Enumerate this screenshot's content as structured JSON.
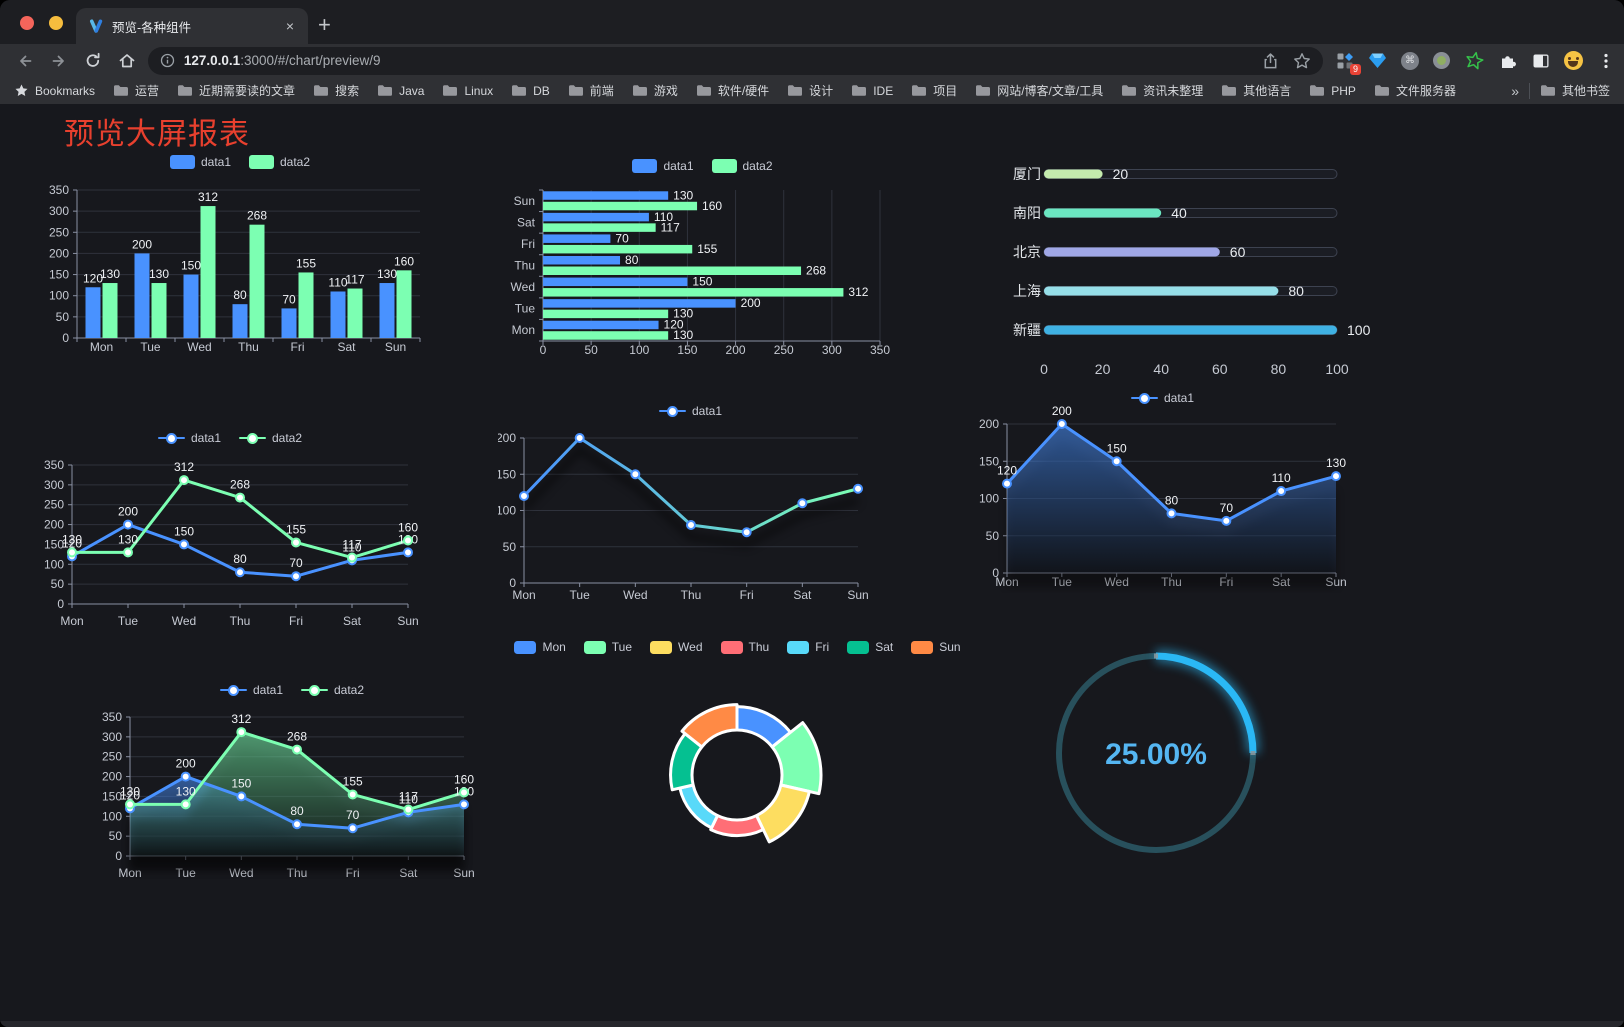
{
  "browser": {
    "tab_title": "预览-各种组件",
    "url_host": "127.0.0.1",
    "url_rest": ":3000/#/chart/preview/9",
    "new_tab_label": "+",
    "close_tab_label": "×",
    "extension_badge": "9",
    "bookmarks_label": "Bookmarks",
    "bookmarks": [
      "运营",
      "近期需要读的文章",
      "搜索",
      "Java",
      "Linux",
      "DB",
      "前端",
      "游戏",
      "软件/硬件",
      "设计",
      "IDE",
      "项目",
      "网站/博客/文章/工具",
      "资讯未整理",
      "其他语言",
      "PHP",
      "文件服务器"
    ],
    "bookmarks_overflow": "»",
    "other_bookmarks": "其他书签"
  },
  "page": {
    "title": "预览大屏报表",
    "title_color": "#e8402e",
    "background": "#17181d"
  },
  "chart_data": [
    {
      "id": "bar-grouped",
      "type": "bar",
      "orientation": "vertical",
      "categories": [
        "Mon",
        "Tue",
        "Wed",
        "Thu",
        "Fri",
        "Sat",
        "Sun"
      ],
      "series": [
        {
          "name": "data1",
          "color": "#4992ff",
          "values": [
            120,
            200,
            150,
            80,
            70,
            110,
            130
          ]
        },
        {
          "name": "data2",
          "color": "#7cffb2",
          "values": [
            130,
            130,
            312,
            268,
            155,
            117,
            160
          ]
        }
      ],
      "ylim": [
        0,
        350
      ],
      "ystep": 50,
      "grid": true,
      "legend_position": "top",
      "show_labels": true
    },
    {
      "id": "bar-horizontal",
      "type": "bar",
      "orientation": "horizontal",
      "categories": [
        "Mon",
        "Tue",
        "Wed",
        "Thu",
        "Fri",
        "Sat",
        "Sun"
      ],
      "series": [
        {
          "name": "data1",
          "color": "#4992ff",
          "values": [
            120,
            200,
            150,
            80,
            70,
            110,
            130
          ]
        },
        {
          "name": "data2",
          "color": "#7cffb2",
          "values": [
            130,
            130,
            312,
            268,
            155,
            117,
            160
          ]
        }
      ],
      "xlim": [
        0,
        350
      ],
      "xstep": 50,
      "grid": true,
      "legend_position": "top",
      "show_labels": true
    },
    {
      "id": "progress-bars",
      "type": "bar",
      "subtype": "progress-list",
      "categories": [
        "厦门",
        "南阳",
        "北京",
        "上海",
        "新疆"
      ],
      "values": [
        20,
        40,
        60,
        80,
        100
      ],
      "colors": [
        "#c4ebad",
        "#6be6c1",
        "#a0a7e6",
        "#96dee8",
        "#3fb1e3"
      ],
      "xlim": [
        0,
        100
      ],
      "xticks": [
        0,
        20,
        40,
        60,
        80,
        100
      ],
      "show_labels": true
    },
    {
      "id": "line-dual",
      "type": "line",
      "categories": [
        "Mon",
        "Tue",
        "Wed",
        "Thu",
        "Fri",
        "Sat",
        "Sun"
      ],
      "series": [
        {
          "name": "data1",
          "color": "#4992ff",
          "values": [
            120,
            200,
            150,
            80,
            70,
            110,
            130
          ]
        },
        {
          "name": "data2",
          "color": "#7cffb2",
          "values": [
            130,
            130,
            312,
            268,
            155,
            117,
            160
          ]
        }
      ],
      "ylim": [
        0,
        350
      ],
      "ystep": 50,
      "grid": true,
      "legend_position": "top",
      "show_labels": true
    },
    {
      "id": "line-gradient",
      "type": "line",
      "categories": [
        "Mon",
        "Tue",
        "Wed",
        "Thu",
        "Fri",
        "Sat",
        "Sun"
      ],
      "series": [
        {
          "name": "data1",
          "color": "#4992ff",
          "values": [
            120,
            200,
            150,
            80,
            70,
            110,
            130
          ]
        }
      ],
      "ylim": [
        0,
        200
      ],
      "ystep": 50,
      "grid": true,
      "gradient": [
        "#4992ff",
        "#7cffb2"
      ],
      "shadow": true,
      "show_labels": false
    },
    {
      "id": "area-single",
      "type": "area",
      "categories": [
        "Mon",
        "Tue",
        "Wed",
        "Thu",
        "Fri",
        "Sat",
        "Sun"
      ],
      "series": [
        {
          "name": "data1",
          "color": "#4992ff",
          "values": [
            120,
            200,
            150,
            80,
            70,
            110,
            130
          ]
        }
      ],
      "ylim": [
        0,
        200
      ],
      "ystep": 50,
      "grid": true,
      "area": true,
      "show_labels": true
    },
    {
      "id": "area-dual",
      "type": "area",
      "categories": [
        "Mon",
        "Tue",
        "Wed",
        "Thu",
        "Fri",
        "Sat",
        "Sun"
      ],
      "series": [
        {
          "name": "data1",
          "color": "#4992ff",
          "values": [
            120,
            200,
            150,
            80,
            70,
            110,
            130
          ]
        },
        {
          "name": "data2",
          "color": "#7cffb2",
          "values": [
            130,
            130,
            312,
            268,
            155,
            117,
            160
          ]
        }
      ],
      "ylim": [
        0,
        350
      ],
      "ystep": 50,
      "grid": true,
      "area": true,
      "show_labels": true
    },
    {
      "id": "rose-pie",
      "type": "pie",
      "rose": true,
      "categories": [
        "Mon",
        "Tue",
        "Wed",
        "Thu",
        "Fri",
        "Sat",
        "Sun"
      ],
      "values": [
        120,
        200,
        150,
        80,
        70,
        110,
        130
      ],
      "colors": [
        "#4992ff",
        "#7cffb2",
        "#fddd60",
        "#ff6e76",
        "#58d9f9",
        "#05c091",
        "#ff8a45"
      ],
      "border_color": "#ffffff",
      "legend_position": "top"
    },
    {
      "id": "gauge",
      "type": "gauge",
      "percent": 25,
      "label": "25.00%",
      "color": "#2ab8f5",
      "track_color": "#28505c",
      "text_color": "#55b6f2"
    }
  ]
}
